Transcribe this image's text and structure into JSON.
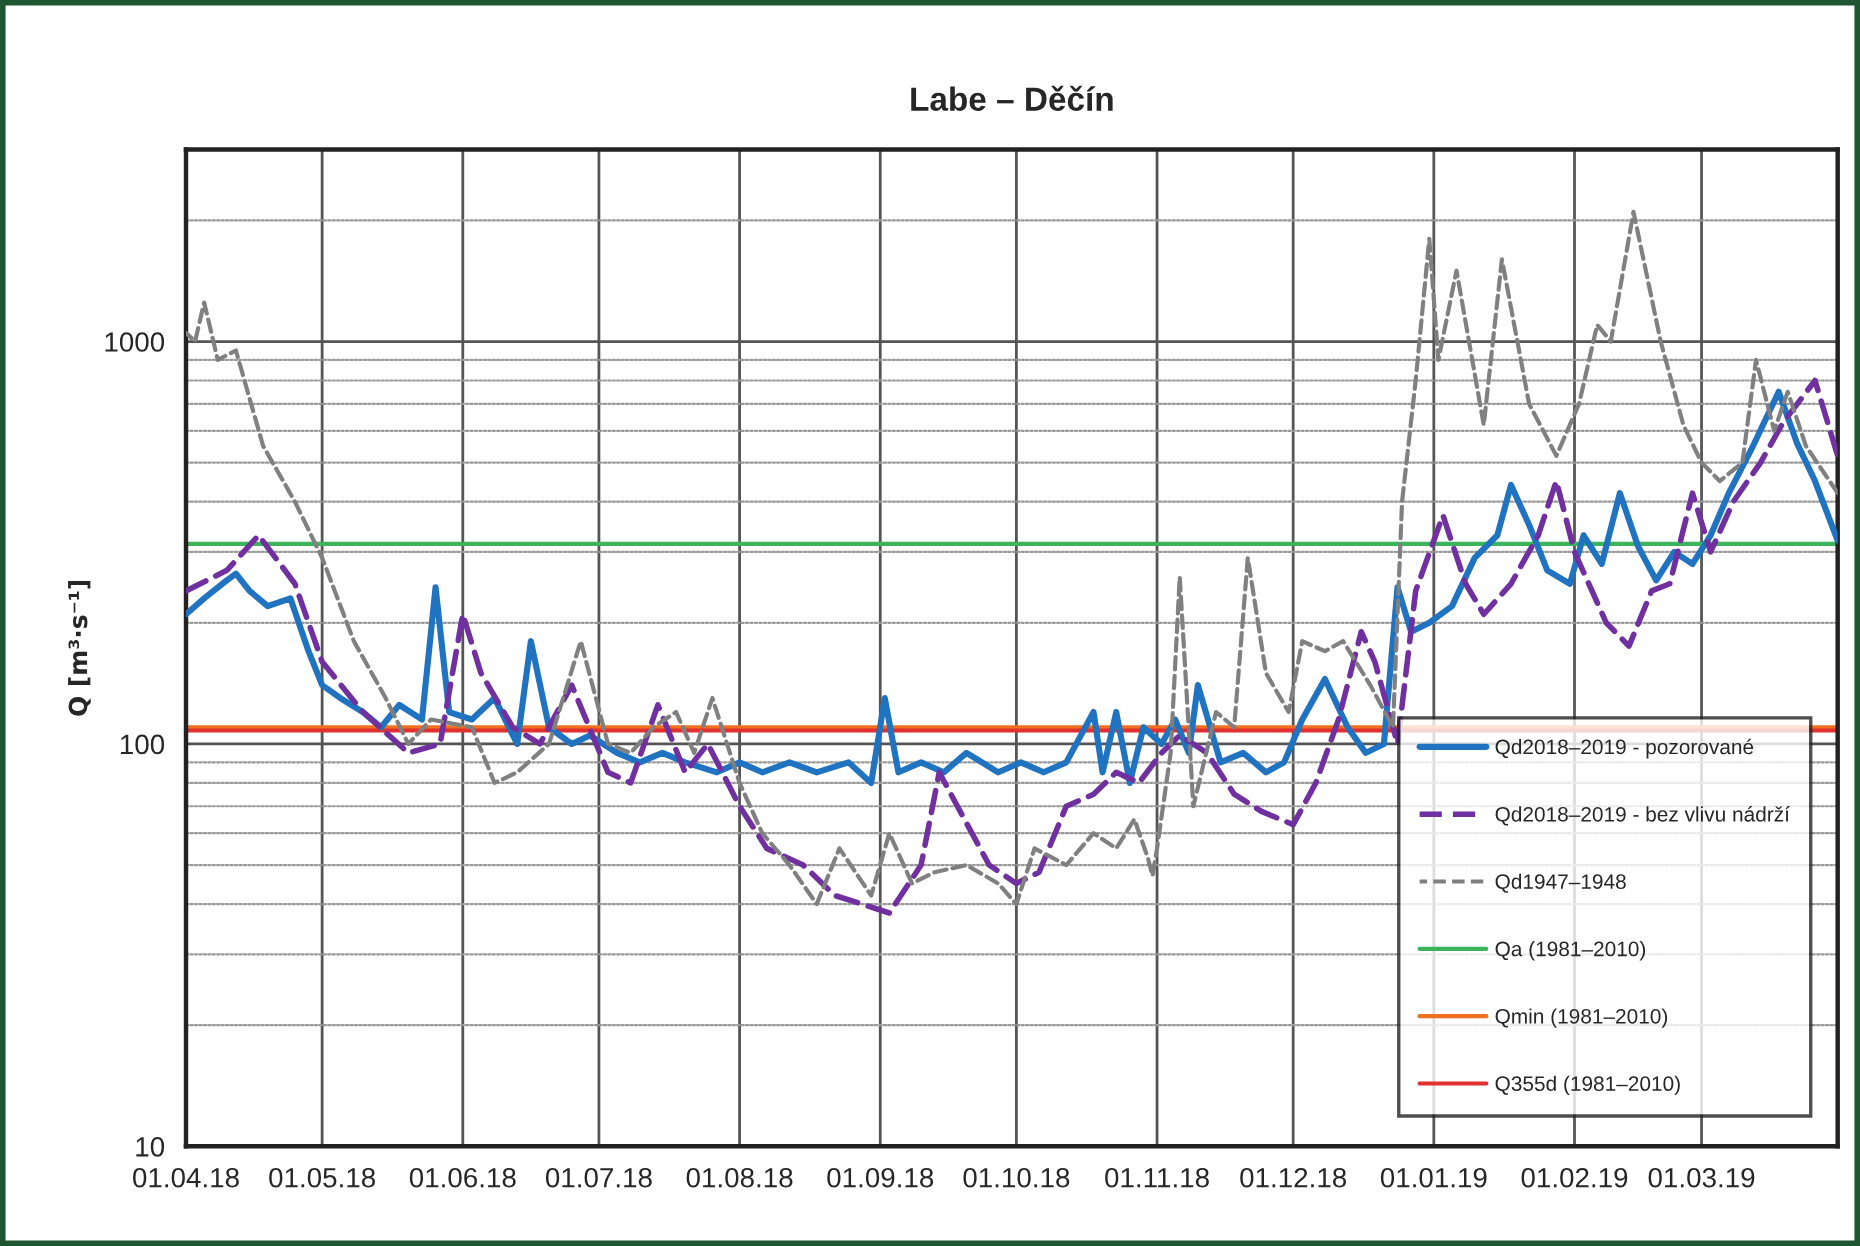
{
  "chart_data": {
    "type": "line",
    "title": "Labe – Děčín",
    "ylabel": "Q [m³·s⁻¹]",
    "log": "y",
    "grid": true,
    "legend": "bottom right",
    "marker": "none",
    "ylim": [
      10,
      3000
    ],
    "yticks": [
      10,
      100,
      1000
    ],
    "xlim": [
      "2018-04-01",
      "2019-03-31"
    ],
    "xticks": [
      {
        "value": "2018-04-01",
        "label": "01.04.18"
      },
      {
        "value": "2018-05-01",
        "label": "01.05.18"
      },
      {
        "value": "2018-06-01",
        "label": "01.06.18"
      },
      {
        "value": "2018-07-01",
        "label": "01.07.18"
      },
      {
        "value": "2018-08-01",
        "label": "01.08.18"
      },
      {
        "value": "2018-09-01",
        "label": "01.09.18"
      },
      {
        "value": "2018-10-01",
        "label": "01.10.18"
      },
      {
        "value": "2018-11-01",
        "label": "01.11.18"
      },
      {
        "value": "2018-12-01",
        "label": "01.12.18"
      },
      {
        "value": "2019-01-01",
        "label": "01.01.19"
      },
      {
        "value": "2019-02-01",
        "label": "01.02.19"
      },
      {
        "value": "2019-03-01",
        "label": "01.03.19"
      }
    ],
    "series": [
      {
        "name": "Qd2018–2019 - pozorované",
        "color": "#1f73c0",
        "line_style": "solid",
        "x": [
          "2018-04-01",
          "2018-04-05",
          "2018-04-09",
          "2018-04-12",
          "2018-04-15",
          "2018-04-19",
          "2018-04-24",
          "2018-04-28",
          "2018-05-01",
          "2018-05-05",
          "2018-05-10",
          "2018-05-14",
          "2018-05-18",
          "2018-05-23",
          "2018-05-26",
          "2018-05-29",
          "2018-06-03",
          "2018-06-08",
          "2018-06-13",
          "2018-06-16",
          "2018-06-20",
          "2018-06-25",
          "2018-06-29",
          "2018-07-05",
          "2018-07-10",
          "2018-07-15",
          "2018-07-20",
          "2018-07-27",
          "2018-08-01",
          "2018-08-06",
          "2018-08-12",
          "2018-08-18",
          "2018-08-25",
          "2018-08-30",
          "2018-09-02",
          "2018-09-05",
          "2018-09-10",
          "2018-09-15",
          "2018-09-20",
          "2018-09-27",
          "2018-10-02",
          "2018-10-07",
          "2018-10-12",
          "2018-10-18",
          "2018-10-20",
          "2018-10-23",
          "2018-10-26",
          "2018-10-29",
          "2018-11-02",
          "2018-11-05",
          "2018-11-08",
          "2018-11-10",
          "2018-11-15",
          "2018-11-20",
          "2018-11-25",
          "2018-11-29",
          "2018-12-03",
          "2018-12-08",
          "2018-12-13",
          "2018-12-17",
          "2018-12-21",
          "2018-12-24",
          "2018-12-27",
          "2018-12-31",
          "2019-01-05",
          "2019-01-10",
          "2019-01-15",
          "2019-01-18",
          "2019-01-22",
          "2019-01-26",
          "2019-01-31",
          "2019-02-03",
          "2019-02-07",
          "2019-02-11",
          "2019-02-15",
          "2019-02-19",
          "2019-02-23",
          "2019-02-27",
          "2019-03-03",
          "2019-03-07",
          "2019-03-12",
          "2019-03-18",
          "2019-03-22",
          "2019-03-26",
          "2019-03-31"
        ],
        "values": [
          210,
          230,
          250,
          265,
          240,
          220,
          230,
          170,
          140,
          130,
          120,
          110,
          125,
          115,
          245,
          120,
          115,
          130,
          100,
          180,
          110,
          100,
          105,
          95,
          90,
          95,
          90,
          85,
          90,
          85,
          90,
          85,
          90,
          80,
          130,
          85,
          90,
          85,
          95,
          85,
          90,
          85,
          90,
          120,
          85,
          120,
          80,
          110,
          100,
          115,
          95,
          140,
          90,
          95,
          85,
          90,
          115,
          145,
          110,
          95,
          100,
          245,
          190,
          200,
          220,
          290,
          330,
          440,
          350,
          270,
          250,
          330,
          280,
          420,
          310,
          255,
          300,
          280,
          330,
          420,
          540,
          750,
          560,
          450,
          320
        ]
      },
      {
        "name": "Qd2018–2019 - bez vlivu nádrží",
        "color": "#7030a0",
        "line_style": "dashed",
        "x": [
          "2018-04-01",
          "2018-04-10",
          "2018-04-17",
          "2018-04-25",
          "2018-05-01",
          "2018-05-10",
          "2018-05-20",
          "2018-05-27",
          "2018-06-01",
          "2018-06-05",
          "2018-06-12",
          "2018-06-18",
          "2018-06-25",
          "2018-07-03",
          "2018-07-08",
          "2018-07-14",
          "2018-07-20",
          "2018-07-25",
          "2018-08-01",
          "2018-08-07",
          "2018-08-15",
          "2018-08-22",
          "2018-08-28",
          "2018-09-03",
          "2018-09-10",
          "2018-09-14",
          "2018-09-18",
          "2018-09-25",
          "2018-10-01",
          "2018-10-06",
          "2018-10-12",
          "2018-10-18",
          "2018-10-23",
          "2018-10-28",
          "2018-11-02",
          "2018-11-06",
          "2018-11-12",
          "2018-11-18",
          "2018-11-24",
          "2018-12-01",
          "2018-12-06",
          "2018-12-11",
          "2018-12-16",
          "2018-12-19",
          "2018-12-24",
          "2018-12-28",
          "2019-01-03",
          "2019-01-08",
          "2019-01-12",
          "2019-01-18",
          "2019-01-24",
          "2019-01-28",
          "2019-02-01",
          "2019-02-08",
          "2019-02-13",
          "2019-02-18",
          "2019-02-22",
          "2019-02-27",
          "2019-03-03",
          "2019-03-08",
          "2019-03-14",
          "2019-03-19",
          "2019-03-26",
          "2019-03-31"
        ],
        "values": [
          240,
          270,
          330,
          250,
          160,
          120,
          95,
          100,
          210,
          150,
          110,
          100,
          140,
          85,
          80,
          125,
          85,
          100,
          70,
          55,
          50,
          42,
          40,
          38,
          50,
          85,
          70,
          50,
          45,
          48,
          70,
          75,
          85,
          80,
          95,
          105,
          95,
          75,
          68,
          63,
          80,
          115,
          190,
          160,
          100,
          240,
          370,
          250,
          210,
          250,
          330,
          450,
          300,
          200,
          175,
          240,
          250,
          420,
          300,
          400,
          500,
          630,
          800,
          520
        ]
      },
      {
        "name": "Qd1947–1948",
        "color": "#808080",
        "line_style": "dotted",
        "x": [
          "2018-04-01",
          "2018-04-03",
          "2018-04-05",
          "2018-04-08",
          "2018-04-12",
          "2018-04-18",
          "2018-04-25",
          "2018-05-01",
          "2018-05-08",
          "2018-05-15",
          "2018-05-20",
          "2018-05-25",
          "2018-06-03",
          "2018-06-08",
          "2018-06-13",
          "2018-06-20",
          "2018-06-27",
          "2018-07-03",
          "2018-07-08",
          "2018-07-13",
          "2018-07-18",
          "2018-07-22",
          "2018-07-26",
          "2018-08-01",
          "2018-08-06",
          "2018-08-12",
          "2018-08-18",
          "2018-08-23",
          "2018-08-30",
          "2018-09-03",
          "2018-09-08",
          "2018-09-13",
          "2018-09-20",
          "2018-09-27",
          "2018-10-01",
          "2018-10-05",
          "2018-10-12",
          "2018-10-18",
          "2018-10-23",
          "2018-10-27",
          "2018-10-30",
          "2018-10-31",
          "2018-11-01",
          "2018-11-04",
          "2018-11-06",
          "2018-11-09",
          "2018-11-14",
          "2018-11-18",
          "2018-11-21",
          "2018-11-25",
          "2018-11-30",
          "2018-12-03",
          "2018-12-08",
          "2018-12-12",
          "2018-12-18",
          "2018-12-23",
          "2018-12-25",
          "2018-12-28",
          "2018-12-31",
          "2019-01-02",
          "2019-01-06",
          "2019-01-12",
          "2019-01-16",
          "2019-01-22",
          "2019-01-28",
          "2019-02-02",
          "2019-02-06",
          "2019-02-09",
          "2019-02-14",
          "2019-02-20",
          "2019-02-25",
          "2019-03-01",
          "2019-03-05",
          "2019-03-10",
          "2019-03-13",
          "2019-03-17",
          "2019-03-20",
          "2019-03-24",
          "2019-03-31"
        ],
        "values": [
          1050,
          1000,
          1250,
          900,
          950,
          550,
          400,
          290,
          180,
          130,
          100,
          115,
          110,
          80,
          85,
          100,
          180,
          100,
          95,
          110,
          120,
          95,
          130,
          80,
          60,
          50,
          40,
          55,
          42,
          60,
          45,
          48,
          50,
          45,
          40,
          55,
          50,
          60,
          55,
          65,
          52,
          47,
          55,
          95,
          260,
          70,
          120,
          110,
          290,
          150,
          120,
          180,
          170,
          180,
          140,
          110,
          400,
          800,
          1800,
          900,
          1500,
          620,
          1600,
          700,
          520,
          700,
          1100,
          1000,
          2100,
          1000,
          620,
          500,
          450,
          500,
          900,
          600,
          750,
          550,
          420
        ]
      }
    ],
    "ref_lines": [
      {
        "axis": "y",
        "value": 314,
        "label": "Qa (1981–2010)",
        "color": "#3cb45a"
      },
      {
        "axis": "y",
        "value": 110,
        "label": "Qmin (1981–2010)",
        "color": "#f07020"
      },
      {
        "axis": "y",
        "value": 108,
        "label": "Q355d (1981–2010)",
        "color": "#e03030"
      }
    ]
  }
}
